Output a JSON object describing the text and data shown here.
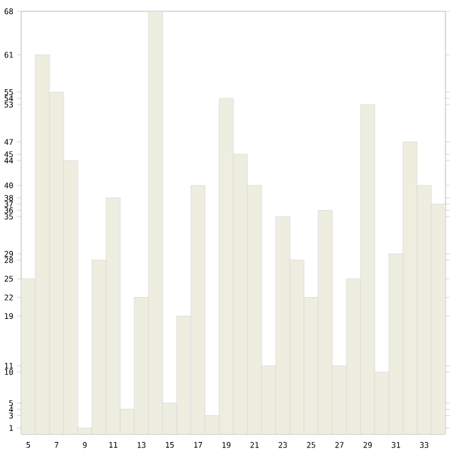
{
  "chart_data": {
    "type": "bar",
    "categories": [
      "5",
      null,
      "7",
      null,
      "9",
      null,
      "11",
      null,
      "13",
      null,
      "15",
      null,
      "17",
      null,
      "19",
      null,
      "21",
      null,
      "23",
      null,
      "25",
      null,
      "27",
      null,
      "29",
      null,
      "31",
      null,
      "33",
      null
    ],
    "values": [
      25,
      61,
      55,
      44,
      1,
      28,
      38,
      4,
      22,
      68,
      5,
      19,
      40,
      3,
      54,
      45,
      40,
      11,
      35,
      28,
      22,
      36,
      11,
      25,
      53,
      10,
      29,
      47,
      40,
      37
    ],
    "color": "#eeeee0",
    "ylim": [
      0,
      68
    ],
    "yticks": [
      1,
      3,
      4,
      5,
      10,
      11,
      19,
      22,
      25,
      28,
      29,
      35,
      36,
      37,
      38,
      40,
      44,
      45,
      47,
      53,
      54,
      55,
      61,
      68
    ],
    "grid": false
  }
}
